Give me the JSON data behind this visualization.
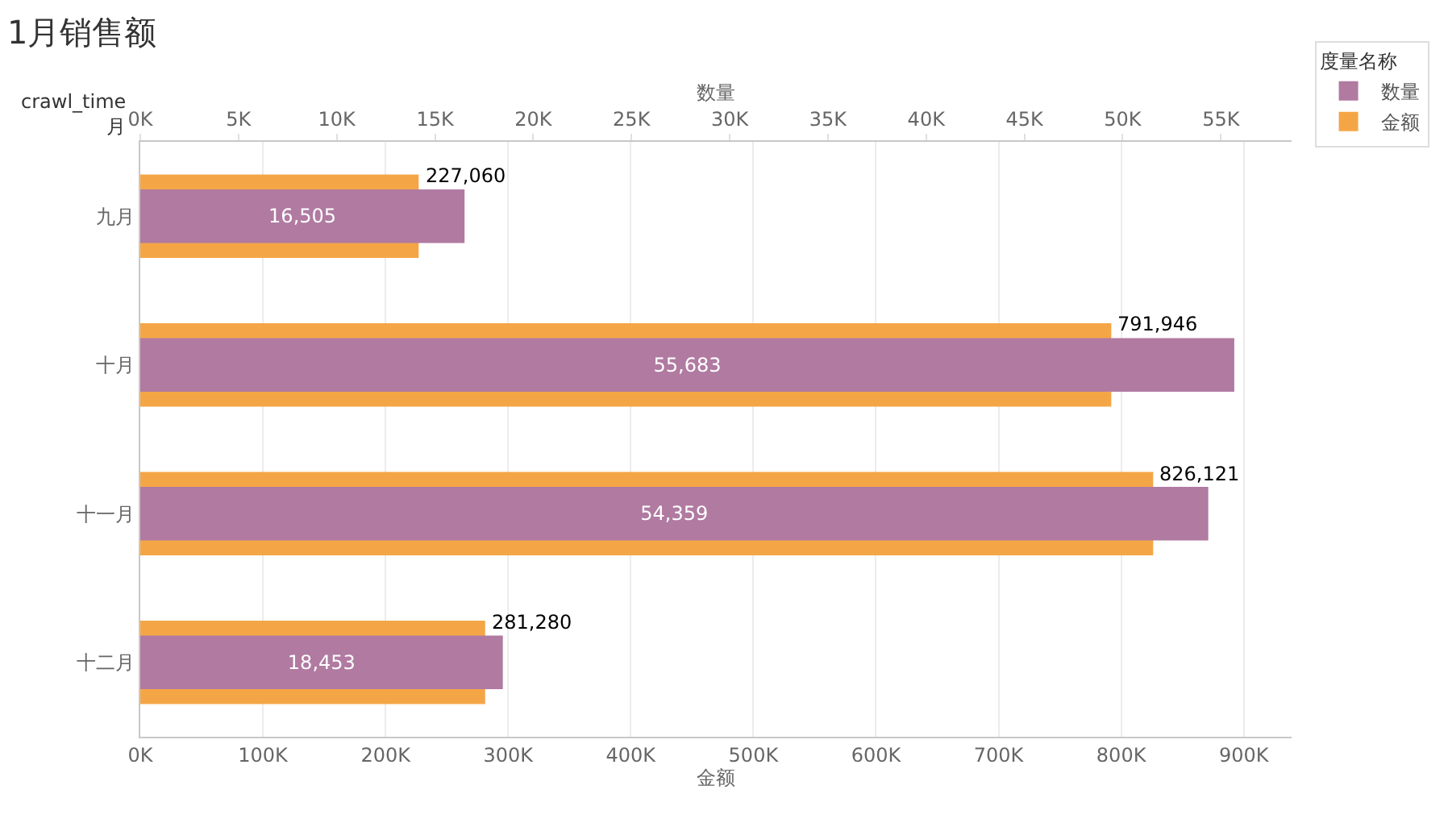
{
  "chart_data": {
    "type": "bar",
    "orientation": "horizontal",
    "title": "1月销售额",
    "ylabel": "crawl_time\n月",
    "xlabel": "金额",
    "x2label": "数量",
    "legend_title": "度量名称",
    "categories": [
      "九月",
      "十月",
      "十一月",
      "十二月"
    ],
    "series": [
      {
        "name": "金额",
        "color": "#f4a646",
        "values": [
          227060,
          791946,
          826121,
          281280
        ],
        "value_labels": [
          "227,060",
          "791,946",
          "826,121",
          "281,280"
        ]
      },
      {
        "name": "数量",
        "color": "#b07aa1",
        "axis": "x2",
        "values": [
          16505,
          55683,
          54359,
          18453
        ],
        "value_labels": [
          "16,505",
          "55,683",
          "54,359",
          "18,453"
        ]
      }
    ],
    "xlim": [
      0,
      939000
    ],
    "xticks": [
      {
        "value": 0,
        "label": "0K"
      },
      {
        "value": 100000,
        "label": "100K"
      },
      {
        "value": 200000,
        "label": "200K"
      },
      {
        "value": 300000,
        "label": "300K"
      },
      {
        "value": 400000,
        "label": "400K"
      },
      {
        "value": 500000,
        "label": "500K"
      },
      {
        "value": 600000,
        "label": "600K"
      },
      {
        "value": 700000,
        "label": "700K"
      },
      {
        "value": 800000,
        "label": "800K"
      },
      {
        "value": 900000,
        "label": "900K"
      }
    ],
    "x2lim": [
      0,
      58600
    ],
    "x2ticks": [
      {
        "value": 0,
        "label": "0K"
      },
      {
        "value": 5000,
        "label": "5K"
      },
      {
        "value": 10000,
        "label": "10K"
      },
      {
        "value": 15000,
        "label": "15K"
      },
      {
        "value": 20000,
        "label": "20K"
      },
      {
        "value": 25000,
        "label": "25K"
      },
      {
        "value": 30000,
        "label": "30K"
      },
      {
        "value": 35000,
        "label": "35K"
      },
      {
        "value": 40000,
        "label": "40K"
      },
      {
        "value": 45000,
        "label": "45K"
      },
      {
        "value": 50000,
        "label": "50K"
      },
      {
        "value": 55000,
        "label": "55K"
      }
    ],
    "grid": "x",
    "legend": "top right"
  }
}
